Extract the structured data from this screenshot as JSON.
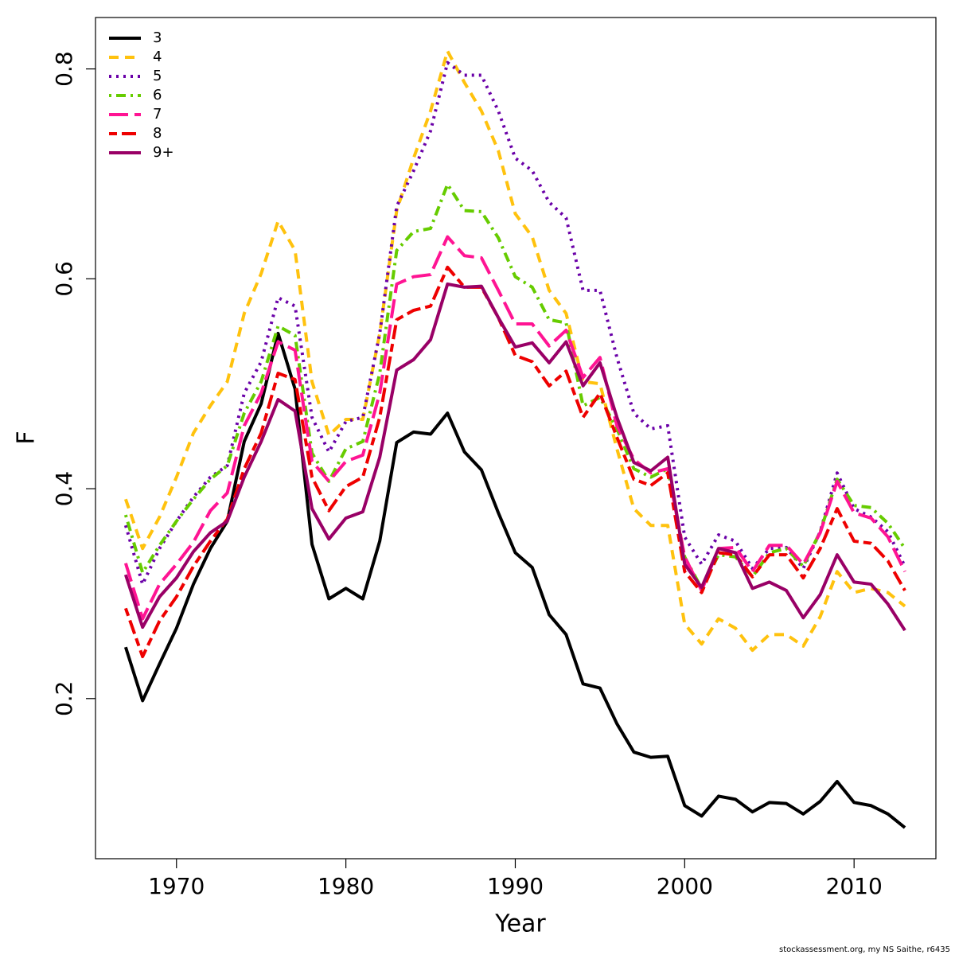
{
  "chart_data": {
    "type": "line",
    "xlabel": "Year",
    "ylabel": "F",
    "footnote": "stockassessment.org, my NS Saithe, r6435",
    "x": [
      1967,
      1968,
      1969,
      1970,
      1971,
      1972,
      1973,
      1974,
      1975,
      1976,
      1977,
      1978,
      1979,
      1980,
      1981,
      1982,
      1983,
      1984,
      1985,
      1986,
      1987,
      1988,
      1989,
      1990,
      1991,
      1992,
      1993,
      1994,
      1995,
      1996,
      1997,
      1998,
      1999,
      2000,
      2001,
      2002,
      2003,
      2004,
      2005,
      2006,
      2007,
      2008,
      2009,
      2010,
      2011,
      2012,
      2013
    ],
    "xlim": [
      1965.22,
      2014.83
    ],
    "xticks": [
      1970,
      1980,
      1990,
      2000,
      2010
    ],
    "ylim": [
      0.0474,
      0.849
    ],
    "yticks": [
      0.2,
      0.4,
      0.6,
      0.8
    ],
    "legend": "top-left",
    "series": [
      {
        "name": "3",
        "color": "#000000",
        "line_style": "solid",
        "values": [
          0.249,
          0.198,
          0.233,
          0.267,
          0.309,
          0.343,
          0.369,
          0.445,
          0.481,
          0.548,
          0.495,
          0.347,
          0.295,
          0.305,
          0.295,
          0.35,
          0.444,
          0.454,
          0.452,
          0.472,
          0.435,
          0.418,
          0.377,
          0.339,
          0.325,
          0.28,
          0.261,
          0.214,
          0.21,
          0.176,
          0.149,
          0.144,
          0.145,
          0.098,
          0.088,
          0.107,
          0.104,
          0.092,
          0.101,
          0.1,
          0.09,
          0.102,
          0.121,
          0.101,
          0.098,
          0.09,
          0.077
        ]
      },
      {
        "name": "4",
        "color": "#ffc20e",
        "line_style": "dashed",
        "values": [
          0.39,
          0.343,
          0.373,
          0.411,
          0.453,
          0.479,
          0.502,
          0.567,
          0.605,
          0.655,
          0.627,
          0.502,
          0.451,
          0.466,
          0.466,
          0.548,
          0.665,
          0.715,
          0.76,
          0.817,
          0.787,
          0.76,
          0.722,
          0.662,
          0.64,
          0.589,
          0.567,
          0.502,
          0.5,
          0.438,
          0.381,
          0.365,
          0.365,
          0.271,
          0.252,
          0.276,
          0.267,
          0.246,
          0.261,
          0.261,
          0.25,
          0.278,
          0.321,
          0.301,
          0.305,
          0.301,
          0.288
        ]
      },
      {
        "name": "5",
        "color": "#6a00a8",
        "line_style": "dotted",
        "values": [
          0.365,
          0.309,
          0.343,
          0.369,
          0.392,
          0.411,
          0.422,
          0.491,
          0.521,
          0.582,
          0.574,
          0.468,
          0.435,
          0.464,
          0.468,
          0.548,
          0.669,
          0.703,
          0.741,
          0.806,
          0.794,
          0.794,
          0.76,
          0.715,
          0.703,
          0.673,
          0.658,
          0.589,
          0.589,
          0.525,
          0.472,
          0.457,
          0.46,
          0.354,
          0.328,
          0.356,
          0.35,
          0.324,
          0.343,
          0.344,
          0.324,
          0.359,
          0.415,
          0.381,
          0.373,
          0.359,
          0.326
        ]
      },
      {
        "name": "6",
        "color": "#66cc00",
        "line_style": "dotdash",
        "values": [
          0.375,
          0.32,
          0.346,
          0.369,
          0.39,
          0.409,
          0.422,
          0.472,
          0.502,
          0.555,
          0.546,
          0.434,
          0.407,
          0.438,
          0.445,
          0.51,
          0.627,
          0.645,
          0.648,
          0.69,
          0.665,
          0.664,
          0.639,
          0.602,
          0.592,
          0.561,
          0.558,
          0.479,
          0.487,
          0.457,
          0.419,
          0.411,
          0.419,
          0.335,
          0.305,
          0.337,
          0.335,
          0.316,
          0.339,
          0.343,
          0.326,
          0.359,
          0.409,
          0.384,
          0.382,
          0.367,
          0.343
        ]
      },
      {
        "name": "7",
        "color": "#ff1493",
        "line_style": "longdash",
        "values": [
          0.329,
          0.276,
          0.309,
          0.328,
          0.349,
          0.379,
          0.396,
          0.46,
          0.491,
          0.54,
          0.532,
          0.426,
          0.407,
          0.426,
          0.432,
          0.491,
          0.595,
          0.602,
          0.604,
          0.64,
          0.622,
          0.62,
          0.589,
          0.557,
          0.557,
          0.536,
          0.551,
          0.506,
          0.525,
          0.46,
          0.428,
          0.415,
          0.419,
          0.335,
          0.303,
          0.343,
          0.344,
          0.321,
          0.346,
          0.346,
          0.328,
          0.358,
          0.407,
          0.377,
          0.372,
          0.354,
          0.321
        ]
      },
      {
        "name": "8",
        "color": "#ee0000",
        "line_style": "twodash",
        "values": [
          0.286,
          0.24,
          0.274,
          0.297,
          0.326,
          0.35,
          0.371,
          0.419,
          0.453,
          0.51,
          0.504,
          0.411,
          0.379,
          0.402,
          0.411,
          0.468,
          0.561,
          0.57,
          0.574,
          0.611,
          0.592,
          0.592,
          0.563,
          0.527,
          0.521,
          0.498,
          0.512,
          0.468,
          0.491,
          0.449,
          0.409,
          0.403,
          0.415,
          0.321,
          0.301,
          0.339,
          0.337,
          0.316,
          0.337,
          0.337,
          0.315,
          0.343,
          0.381,
          0.35,
          0.348,
          0.331,
          0.303
        ]
      },
      {
        "name": "9+",
        "color": "#990066",
        "line_style": "solid",
        "values": [
          0.318,
          0.268,
          0.297,
          0.315,
          0.34,
          0.358,
          0.369,
          0.411,
          0.445,
          0.485,
          0.474,
          0.381,
          0.352,
          0.372,
          0.378,
          0.43,
          0.513,
          0.523,
          0.542,
          0.595,
          0.592,
          0.593,
          0.563,
          0.535,
          0.539,
          0.52,
          0.54,
          0.498,
          0.52,
          0.468,
          0.425,
          0.417,
          0.43,
          0.328,
          0.306,
          0.343,
          0.339,
          0.305,
          0.311,
          0.303,
          0.277,
          0.299,
          0.337,
          0.311,
          0.309,
          0.29,
          0.265
        ]
      }
    ]
  }
}
